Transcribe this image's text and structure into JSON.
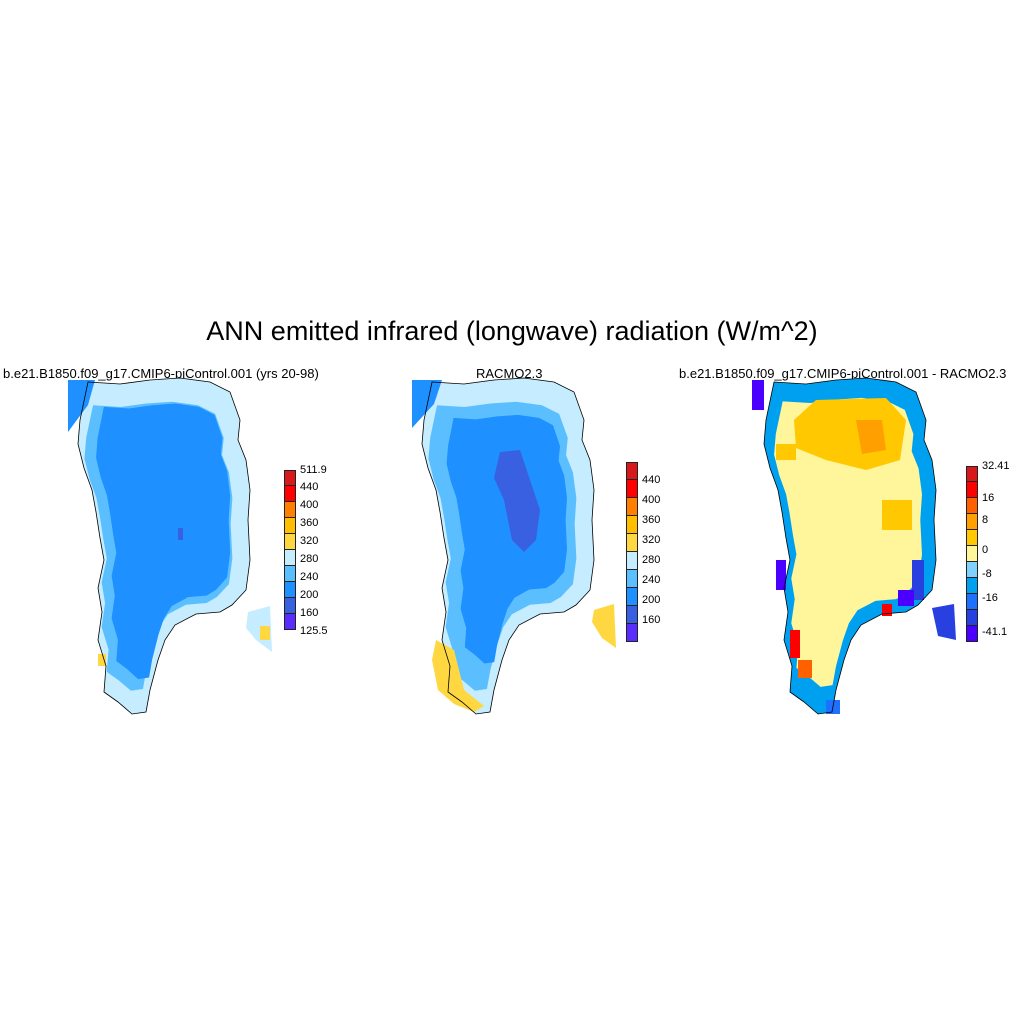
{
  "title": "ANN emitted infrared (longwave) radiation (W/m^2)",
  "panels": [
    {
      "title": "b.e21.B1850.f09_g17.CMIP6-piControl.001 (yrs 20-98)",
      "colorbar": {
        "labels": [
          "511.9",
          "440",
          "400",
          "360",
          "320",
          "280",
          "240",
          "200",
          "160",
          "125.5"
        ],
        "colors": [
          "#d7191c",
          "#ff0000",
          "#ff7f00",
          "#ffbf00",
          "#ffd740",
          "#c6ecff",
          "#5bbfff",
          "#1e90ff",
          "#3860e0",
          "#5a2dff"
        ]
      }
    },
    {
      "title": "RACMO2.3",
      "colorbar": {
        "labels": [
          "440",
          "400",
          "360",
          "320",
          "280",
          "240",
          "200",
          "160"
        ],
        "colors": [
          "#d7191c",
          "#ff0000",
          "#ff7f00",
          "#ffbf00",
          "#ffd740",
          "#c6ecff",
          "#5bbfff",
          "#1e90ff",
          "#3860e0",
          "#5a2dff"
        ]
      }
    },
    {
      "title": "b.e21.B1850.f09_g17.CMIP6-piControl.001 - RACMO2.3",
      "colorbar": {
        "labels": [
          "32.41",
          "16",
          "8",
          "0",
          "-8",
          "-16",
          "-41.1"
        ],
        "colors": [
          "#d7191c",
          "#ff0000",
          "#ff6000",
          "#ff9f00",
          "#ffc800",
          "#fff59a",
          "#7fd2ff",
          "#00a0f0",
          "#1e70ff",
          "#2840e0",
          "#4b00ff"
        ]
      }
    }
  ]
}
